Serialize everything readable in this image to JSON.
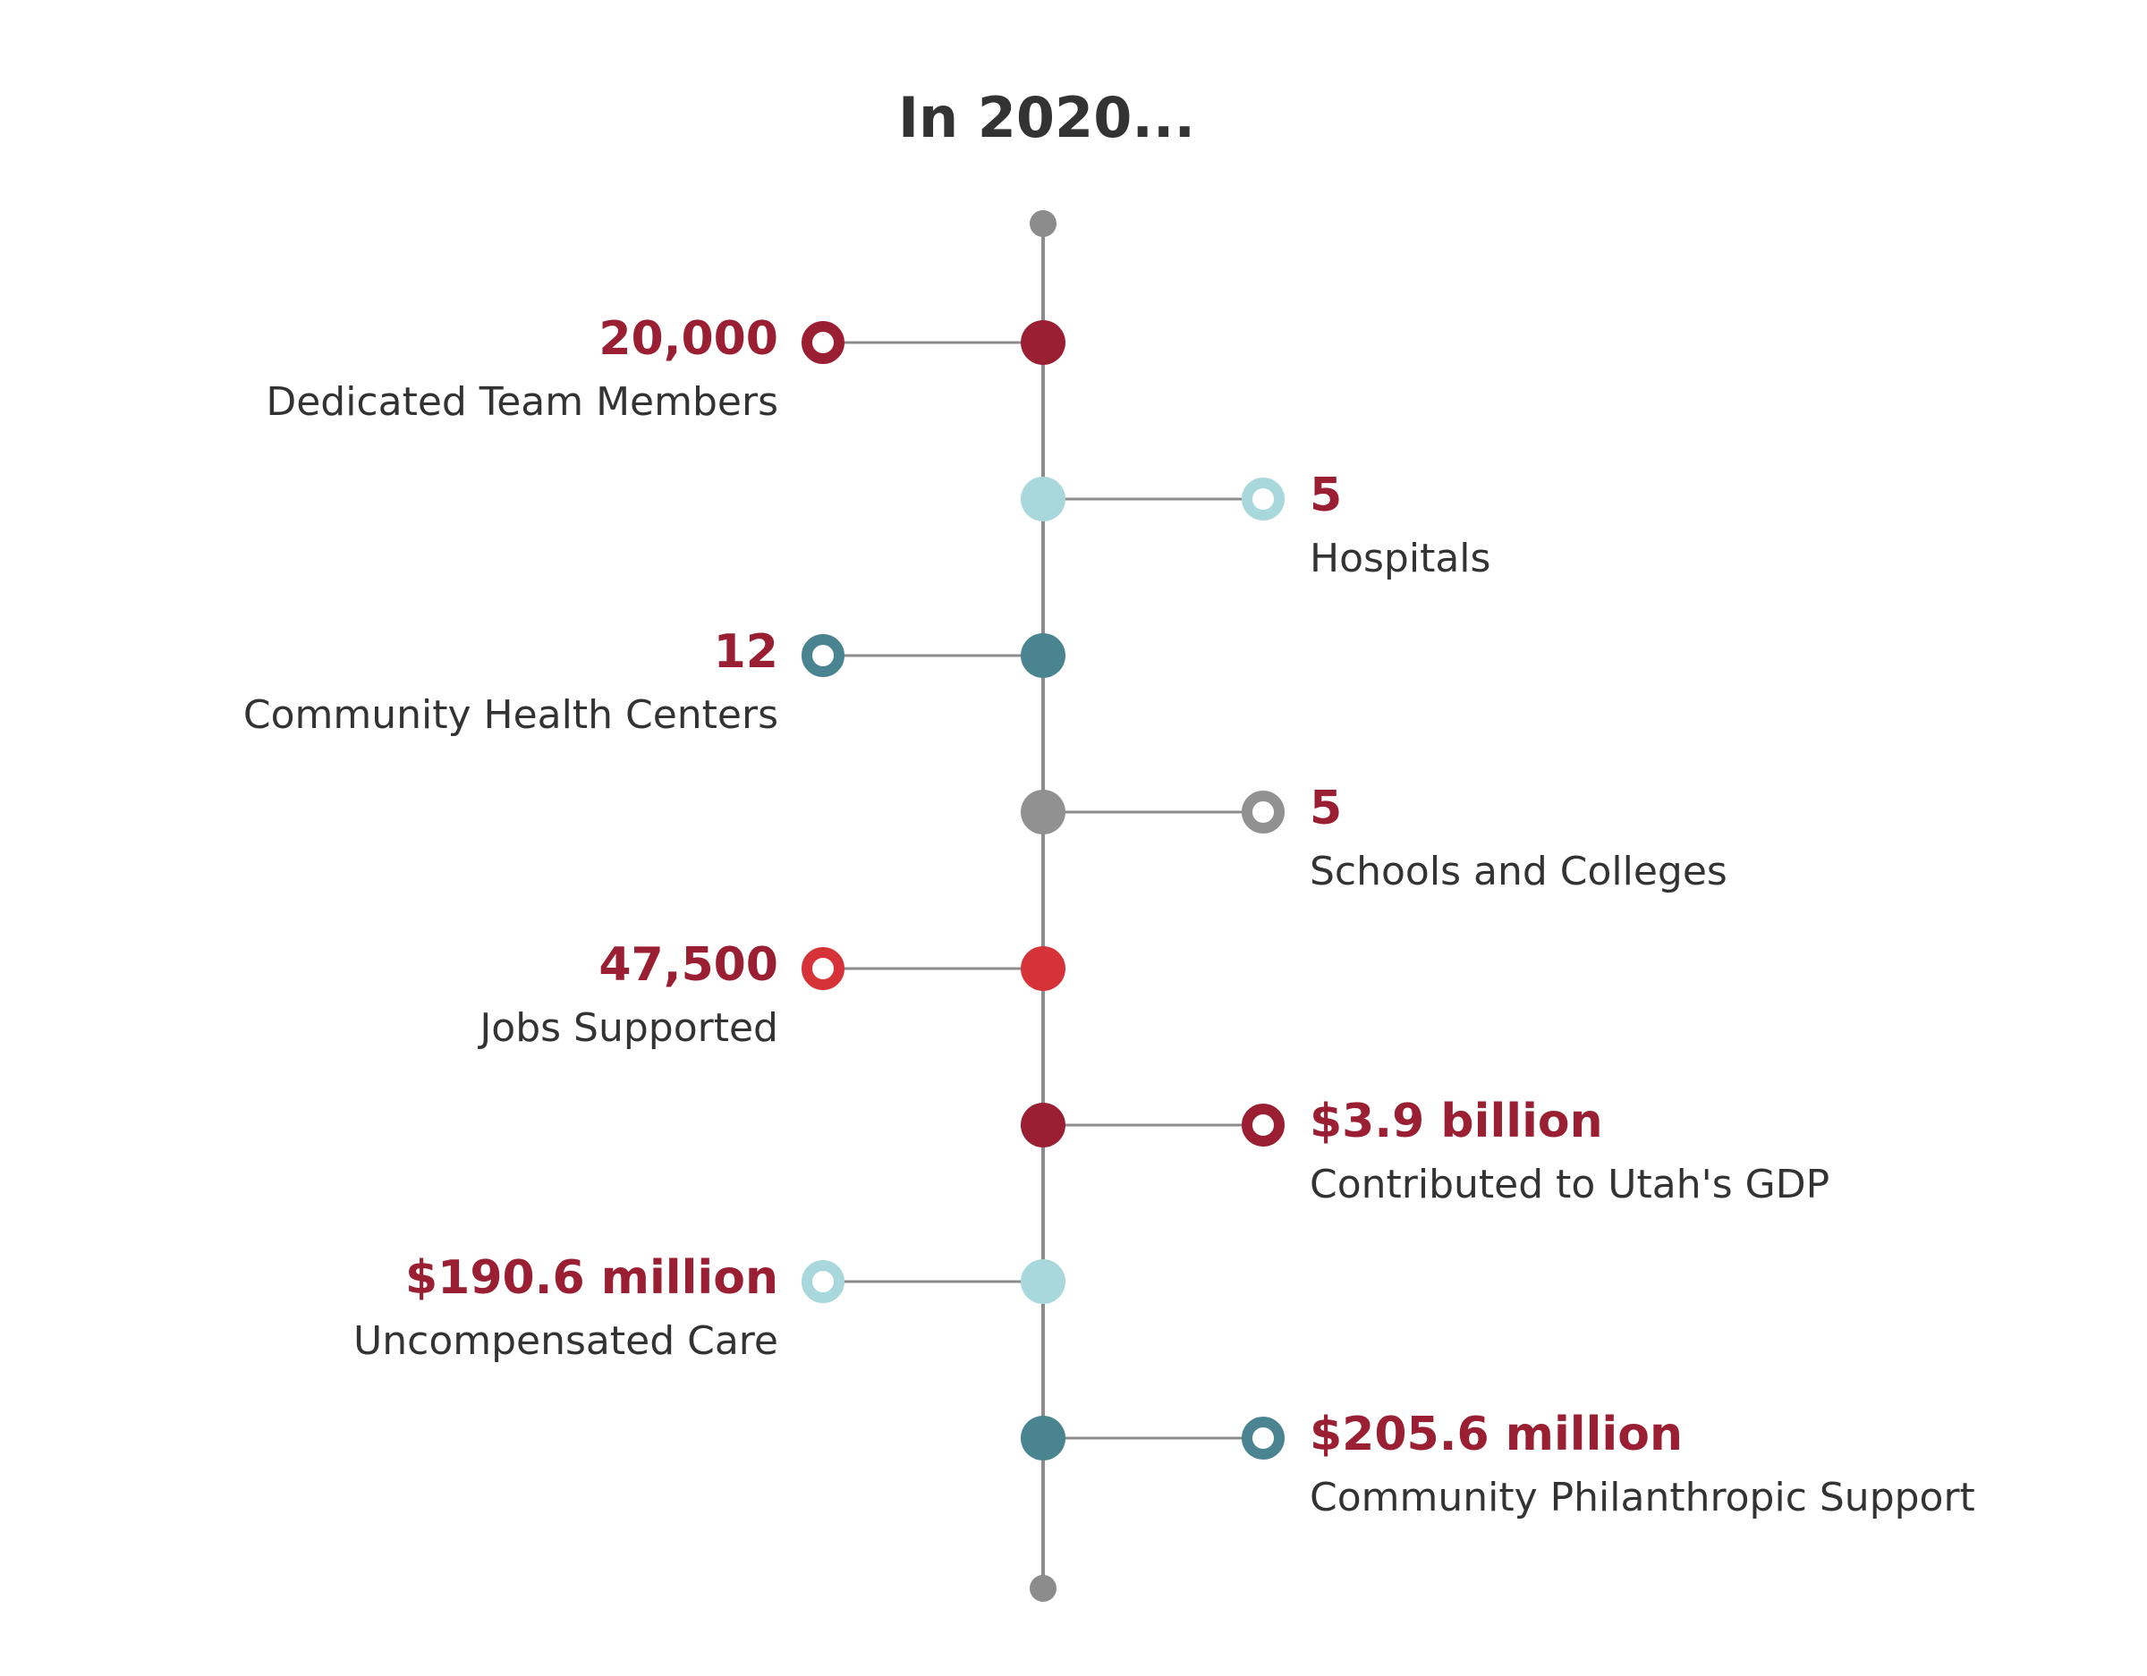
{
  "title": "In 2020...",
  "colors": {
    "line": "#8c8c8c",
    "end_dot": "#8c8c8c",
    "value_text": "#9a1f32",
    "caption_text": "#333333"
  },
  "items": [
    {
      "value": "20,000",
      "caption": "Dedicated Team Members",
      "side": "left",
      "color": "#9a1f32"
    },
    {
      "value": "5",
      "caption": "Hospitals",
      "side": "right",
      "color": "#a8d8db"
    },
    {
      "value": "12",
      "caption": "Community Health Centers",
      "side": "left",
      "color": "#4a8491"
    },
    {
      "value": "5",
      "caption": "Schools and Colleges",
      "side": "right",
      "color": "#919191"
    },
    {
      "value": "47,500",
      "caption": "Jobs Supported",
      "side": "left",
      "color": "#d63339"
    },
    {
      "value": "$3.9 billion",
      "caption": "Contributed to Utah's GDP",
      "side": "right",
      "color": "#9a1f32"
    },
    {
      "value": "$190.6 million",
      "caption": "Uncompensated Care",
      "side": "left",
      "color": "#a8d8db"
    },
    {
      "value": "$205.6 million",
      "caption": "Community Philanthropic Support",
      "side": "right",
      "color": "#4a8491"
    }
  ]
}
